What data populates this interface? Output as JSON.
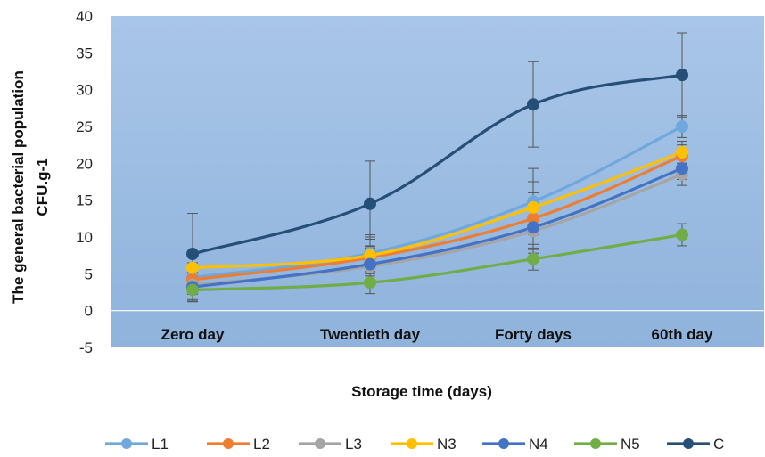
{
  "chart_data": {
    "type": "line",
    "title": "",
    "xlabel": "Storage time (days)",
    "ylabel": "The general bacterial population",
    "ylabel_unit": "CFU.g-1",
    "categories": [
      "Zero day",
      "Twentieth day",
      "Forty days",
      "60th day"
    ],
    "ylim": [
      -5,
      40
    ],
    "yticks": [
      "40",
      "35",
      "30",
      "25",
      "20",
      "15",
      "10",
      "5",
      "0",
      "-5"
    ],
    "legend_position": "bottom",
    "series": [
      {
        "name": "L1",
        "color": "#6fa8dc",
        "values": [
          4.5,
          7.8,
          14.8,
          25.0
        ],
        "errors": [
          2.0,
          2.5,
          4.5,
          1.5
        ]
      },
      {
        "name": "L2",
        "color": "#ed7d31",
        "values": [
          4.2,
          7.2,
          12.5,
          21.0
        ],
        "errors": [
          2.0,
          2.5,
          3.5,
          1.5
        ]
      },
      {
        "name": "L3",
        "color": "#a5a5a5",
        "values": [
          3.5,
          6.0,
          10.8,
          18.5
        ],
        "errors": [
          2.0,
          2.5,
          3.0,
          1.5
        ]
      },
      {
        "name": "N3",
        "color": "#ffc000",
        "values": [
          5.8,
          7.5,
          14.0,
          21.5
        ],
        "errors": [
          2.0,
          2.5,
          3.5,
          1.5
        ]
      },
      {
        "name": "N4",
        "color": "#4472c4",
        "values": [
          3.2,
          6.3,
          11.3,
          19.3
        ],
        "errors": [
          2.0,
          2.5,
          3.0,
          1.5
        ]
      },
      {
        "name": "N5",
        "color": "#70ad47",
        "values": [
          2.8,
          3.8,
          7.0,
          10.3
        ],
        "errors": [
          1.5,
          1.5,
          1.5,
          1.5
        ]
      },
      {
        "name": "C",
        "color": "#264f78",
        "values": [
          7.7,
          14.5,
          28.0,
          32.0
        ],
        "errors": [
          5.5,
          5.8,
          5.8,
          5.7
        ]
      }
    ]
  }
}
